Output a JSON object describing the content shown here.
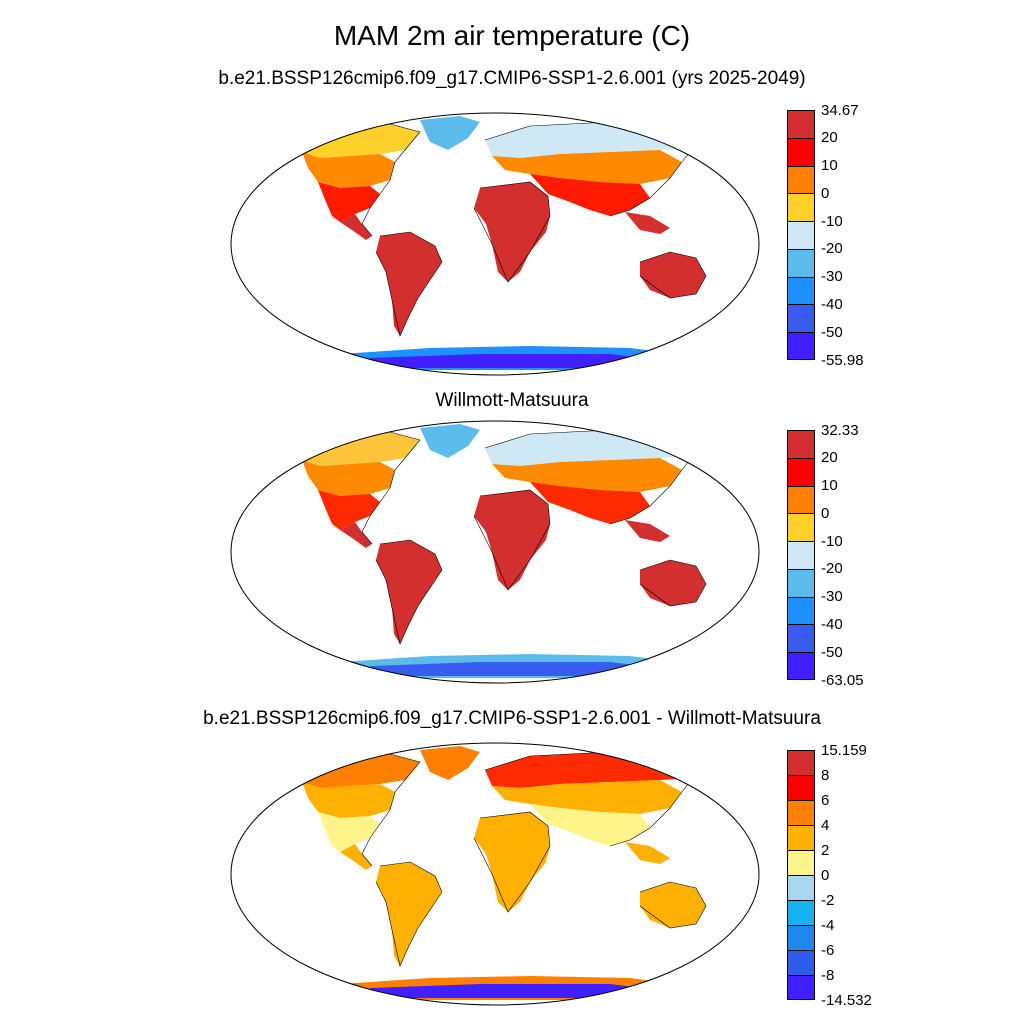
{
  "main_title": "MAM 2m air temperature (C)",
  "panels": [
    {
      "title": "b.e21.BSSP126cmip6.f09_g17.CMIP6-SSP1-2.6.001 (yrs 2025-2049)",
      "colorbar": {
        "labels": [
          "34.67",
          "20",
          "10",
          "0",
          "-10",
          "-20",
          "-30",
          "-40",
          "-50",
          "-55.98"
        ],
        "colors": [
          "#d42f2f",
          "#ff0000",
          "#ff7f00",
          "#ffd02a",
          "#cfe8f5",
          "#5bbcec",
          "#1e90ff",
          "#3a5cee",
          "#4020ff"
        ]
      },
      "land_colors": {
        "tropics": "#d42f2f",
        "subtropics": "#ff1a00",
        "midlat": "#ff8a00",
        "highlat": "#ffd02a",
        "arctic": "#cfe8f5",
        "greenland": "#5bbcec",
        "antarctic_edge": "#1e90ff",
        "antarctic_inner": "#3a5cee",
        "antarctic_core": "#4020ff"
      }
    },
    {
      "title": "Willmott-Matsuura",
      "colorbar": {
        "labels": [
          "32.33",
          "20",
          "10",
          "0",
          "-10",
          "-20",
          "-30",
          "-40",
          "-50",
          "-63.05"
        ],
        "colors": [
          "#d42f2f",
          "#ff0000",
          "#ff7f00",
          "#ffd02a",
          "#cfe8f5",
          "#5bbcec",
          "#1e90ff",
          "#3a5cee",
          "#4020ff"
        ]
      },
      "land_colors": {
        "tropics": "#d42f2f",
        "subtropics": "#ff2a00",
        "midlat": "#ff8a00",
        "highlat": "#ffc53a",
        "arctic": "#cfe8f5",
        "greenland": "#5bbcec",
        "antarctic_edge": "#5bbcec",
        "antarctic_inner": "#1e90ff",
        "antarctic_core": "#3a5cee"
      }
    },
    {
      "title": "b.e21.BSSP126cmip6.f09_g17.CMIP6-SSP1-2.6.001 - Willmott-Matsuura",
      "colorbar": {
        "labels": [
          "15.159",
          "8",
          "6",
          "4",
          "2",
          "0",
          "-2",
          "-4",
          "-6",
          "-8",
          "-14.532"
        ],
        "colors": [
          "#d42f2f",
          "#ff0000",
          "#ff7f00",
          "#ffb000",
          "#fff48a",
          "#a8d8f0",
          "#15b4f0",
          "#1e88ee",
          "#2f5cea",
          "#4020ff"
        ]
      },
      "land_colors": {
        "tropics": "#ffb000",
        "subtropics": "#fff48a",
        "midlat": "#ffb000",
        "highlat": "#ff7f00",
        "arctic": "#ff2a00",
        "greenland": "#ff7f00",
        "antarctic_edge": "#ff7f00",
        "antarctic_inner": "#ffb000",
        "antarctic_core": "#4020ff"
      }
    }
  ]
}
